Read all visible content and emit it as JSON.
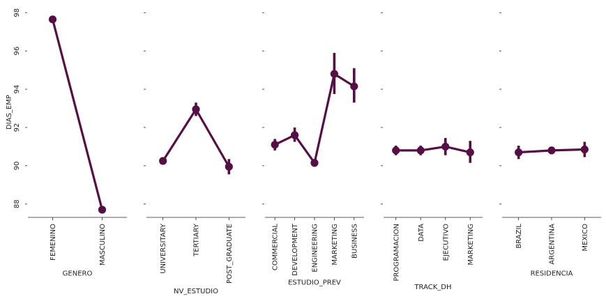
{
  "chart_data": [
    {
      "type": "line",
      "xlabel": "GENERO",
      "ylabel": "DIAS_EMP",
      "ylim": [
        87.3,
        98.3
      ],
      "yticks": [
        88,
        90,
        92,
        94,
        96,
        98
      ],
      "categories": [
        "FEMENINO",
        "MASCULINO"
      ],
      "series": [
        {
          "values": [
            97.65,
            87.7
          ],
          "ci_low": [
            97.6,
            87.65
          ],
          "ci_high": [
            97.7,
            87.75
          ]
        }
      ]
    },
    {
      "type": "line",
      "xlabel": "NV_ESTUDIO",
      "ylabel": "",
      "ylim": [
        87.3,
        98.3
      ],
      "yticks": [
        88,
        90,
        92,
        94,
        96,
        98
      ],
      "categories": [
        "UNIVERSITARY",
        "TERTIARY",
        "POST_GRADUATE"
      ],
      "series": [
        {
          "values": [
            90.25,
            92.95,
            89.95
          ],
          "ci_low": [
            90.1,
            92.6,
            89.55
          ],
          "ci_high": [
            90.4,
            93.3,
            90.35
          ]
        }
      ]
    },
    {
      "type": "line",
      "xlabel": "ESTUDIO_PREV",
      "ylabel": "",
      "ylim": [
        87.3,
        98.3
      ],
      "yticks": [
        88,
        90,
        92,
        94,
        96,
        98
      ],
      "categories": [
        "COMMERCIAL",
        "DEVELOPMENT",
        "ENGINEERING",
        "MARKETING",
        "BUSINESS"
      ],
      "series": [
        {
          "values": [
            91.1,
            91.6,
            90.15,
            94.8,
            94.15
          ],
          "ci_low": [
            90.8,
            91.25,
            89.95,
            93.75,
            93.3
          ],
          "ci_high": [
            91.4,
            92.0,
            90.35,
            95.9,
            95.1
          ]
        }
      ]
    },
    {
      "type": "line",
      "xlabel": "TRACK_DH",
      "ylabel": "",
      "ylim": [
        87.3,
        98.3
      ],
      "yticks": [
        88,
        90,
        92,
        94,
        96,
        98
      ],
      "categories": [
        "PROGRAMACION",
        "DATA",
        "EJECUTIVO",
        "MARKETING"
      ],
      "series": [
        {
          "values": [
            90.8,
            90.8,
            91.0,
            90.7
          ],
          "ci_low": [
            90.55,
            90.55,
            90.55,
            90.15
          ],
          "ci_high": [
            91.05,
            91.05,
            91.45,
            91.3
          ]
        }
      ]
    },
    {
      "type": "line",
      "xlabel": "RESIDENCIA",
      "ylabel": "",
      "ylim": [
        87.3,
        98.3
      ],
      "yticks": [
        88,
        90,
        92,
        94,
        96,
        98
      ],
      "categories": [
        "BRAZIL",
        "ARGENTINA",
        "MEXICO"
      ],
      "series": [
        {
          "values": [
            90.7,
            90.8,
            90.85
          ],
          "ci_low": [
            90.35,
            90.6,
            90.45
          ],
          "ci_high": [
            91.05,
            91.0,
            91.25
          ]
        }
      ]
    }
  ],
  "colors": {
    "series": "#560f44",
    "axis": "#222222"
  }
}
